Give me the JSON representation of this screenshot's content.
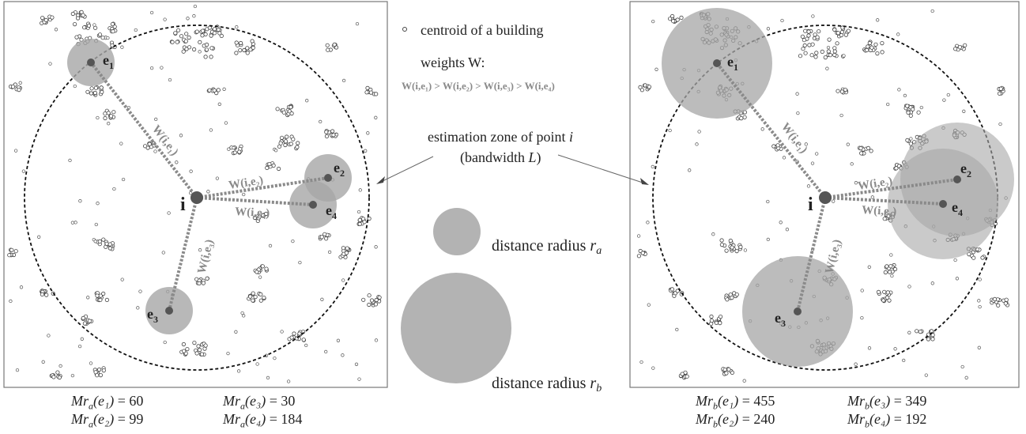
{
  "legend": {
    "centroid_label": "centroid of a building",
    "weights_title": "weights W:",
    "weights_order": "W(i,e₁) > W(i,e₂) > W(i,e₃) > W(i,e₄)",
    "estimation_zone_line1": "estimation zone of point ",
    "estimation_zone_i": "i",
    "estimation_zone_line2_pre": "(bandwidth ",
    "estimation_zone_L": "L",
    "estimation_zone_line2_post": ")",
    "radius_a_label": "distance radius ",
    "radius_a_sym": "r",
    "radius_a_sub": "a",
    "radius_b_label": "distance radius ",
    "radius_b_sym": "r",
    "radius_b_sub": "b"
  },
  "panels": {
    "center_label": "i",
    "points": [
      {
        "label": "e",
        "sub": "1",
        "weight_label": "W(i,e₁)"
      },
      {
        "label": "e",
        "sub": "2",
        "weight_label": "W(i,e₂)"
      },
      {
        "label": "e",
        "sub": "3",
        "weight_label": "W(i,e₃)"
      },
      {
        "label": "e",
        "sub": "4",
        "weight_label": "W(i,e₄)"
      }
    ]
  },
  "results_a": {
    "e1": "Mr",
    "e1_sub": "a",
    "e1_arg": "(e₁)",
    "e1_val": " = 60",
    "e2": "Mr",
    "e2_sub": "a",
    "e2_arg": "(e₂)",
    "e2_val": " = 99",
    "e3": "Mr",
    "e3_sub": "a",
    "e3_arg": "(e₃)",
    "e3_val": " = 30",
    "e4": "Mr",
    "e4_sub": "a",
    "e4_arg": "(e₄)",
    "e4_val": " = 184"
  },
  "results_b": {
    "e1": "Mr",
    "e1_sub": "b",
    "e1_arg": "(e₁)",
    "e1_val": " = 455",
    "e2": "Mr",
    "e2_sub": "b",
    "e2_arg": "(e₂)",
    "e2_val": " = 240",
    "e3": "Mr",
    "e3_sub": "b",
    "e3_arg": "(e₃)",
    "e3_val": " = 349",
    "e4": "Mr",
    "e4_sub": "b",
    "e4_arg": "(e₄)",
    "e4_val": " = 192"
  },
  "colors": {
    "zone_fill": "#a6a6a6",
    "point_fill": "#555555",
    "line_dotted": "#8a8a8a",
    "frame": "#777777"
  }
}
